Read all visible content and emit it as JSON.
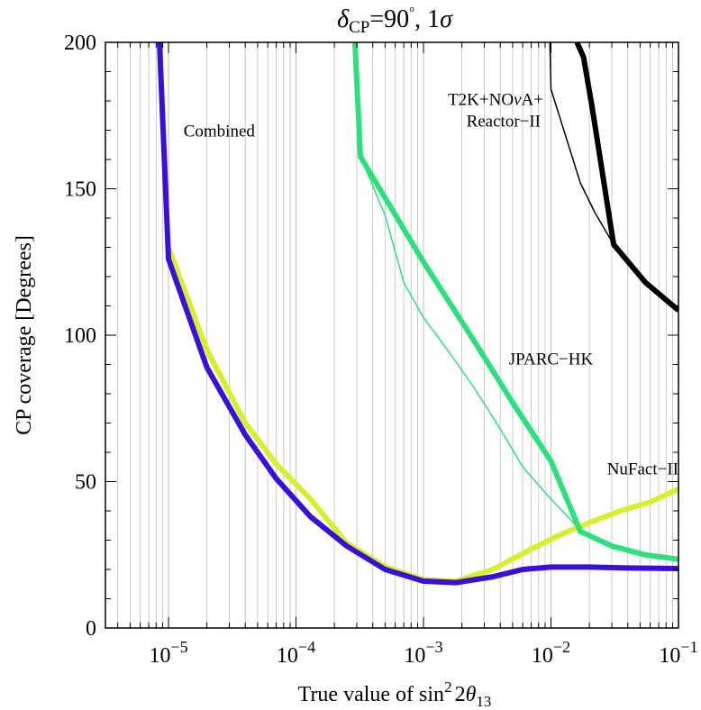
{
  "chart_data": {
    "type": "line",
    "title": {
      "delta_symbol": "δ",
      "delta_subscript": "CP",
      "equals_value": "=90",
      "degree_mark": "°",
      "sigma_prefix": ", 1",
      "sigma_symbol": "σ"
    },
    "xlabel": {
      "text": "True value of sin",
      "superscript": "2",
      "middle": "2",
      "theta_symbol": "θ",
      "theta_subscript": "13"
    },
    "ylabel": "CP coverage [Degrees]",
    "x_scale": "log",
    "xlim": [
      3.2e-06,
      0.1
    ],
    "ylim": [
      0,
      200
    ],
    "x_ticks": [
      {
        "value": 1e-05,
        "base": "10",
        "exp": "−5"
      },
      {
        "value": 0.0001,
        "base": "10",
        "exp": "−4"
      },
      {
        "value": 0.001,
        "base": "10",
        "exp": "−3"
      },
      {
        "value": 0.01,
        "base": "10",
        "exp": "−2"
      },
      {
        "value": 0.1,
        "base": "10",
        "exp": "−1"
      }
    ],
    "y_ticks": [
      0,
      50,
      100,
      150,
      200
    ],
    "grid": "vertical minor and major log grid",
    "colors": {
      "combined": "#3a0fd6",
      "nufact": "#d8ee2e",
      "jparc": "#2ce07c",
      "t2k": "#000000",
      "grid": "#c4c4c4"
    },
    "series": [
      {
        "id": "nufact",
        "style": "thick",
        "color_key": "nufact",
        "points": [
          [
            1e-05,
            130
          ],
          [
            2e-05,
            95
          ],
          [
            4e-05,
            70
          ],
          [
            7e-05,
            56
          ],
          [
            0.00013,
            44
          ],
          [
            0.00025,
            29
          ],
          [
            0.0005,
            21
          ],
          [
            0.001,
            16.5
          ],
          [
            0.0018,
            16
          ],
          [
            0.0035,
            20
          ],
          [
            0.007,
            27
          ],
          [
            0.012,
            32
          ],
          [
            0.02,
            36
          ],
          [
            0.035,
            40
          ],
          [
            0.06,
            43
          ],
          [
            0.1,
            47.5
          ]
        ]
      },
      {
        "id": "combined",
        "style": "thick",
        "color_key": "combined",
        "points": [
          [
            8.5e-06,
            200
          ],
          [
            1e-05,
            126
          ],
          [
            2e-05,
            89
          ],
          [
            4e-05,
            66
          ],
          [
            7e-05,
            51
          ],
          [
            0.00013,
            38
          ],
          [
            0.00025,
            28
          ],
          [
            0.0005,
            20
          ],
          [
            0.001,
            16
          ],
          [
            0.0018,
            15.5
          ],
          [
            0.0035,
            17.5
          ],
          [
            0.006,
            20
          ],
          [
            0.01,
            20.8
          ],
          [
            0.02,
            20.8
          ],
          [
            0.04,
            20.5
          ],
          [
            0.1,
            20.3
          ]
        ]
      },
      {
        "id": "jparc-thin",
        "style": "thin",
        "color_key": "jparc",
        "points": [
          [
            0.00032,
            161
          ],
          [
            0.0005,
            141
          ],
          [
            0.0007,
            118
          ],
          [
            0.001,
            106
          ],
          [
            0.0016,
            94
          ],
          [
            0.0025,
            82
          ],
          [
            0.004,
            68
          ],
          [
            0.006,
            55
          ],
          [
            0.01,
            44
          ],
          [
            0.015,
            36
          ],
          [
            0.017,
            33
          ]
        ]
      },
      {
        "id": "jparc",
        "style": "thick",
        "color_key": "jparc",
        "points": [
          [
            0.00029,
            200
          ],
          [
            0.00032,
            161
          ],
          [
            0.001,
            125
          ],
          [
            0.0025,
            98
          ],
          [
            0.005,
            77
          ],
          [
            0.01,
            57
          ],
          [
            0.017,
            33
          ],
          [
            0.03,
            28
          ],
          [
            0.055,
            25
          ],
          [
            0.1,
            23.5
          ]
        ]
      },
      {
        "id": "t2k-thin",
        "style": "thin",
        "color_key": "t2k",
        "points": [
          [
            0.0098,
            200
          ],
          [
            0.01,
            184
          ],
          [
            0.017,
            152
          ],
          [
            0.022,
            142
          ],
          [
            0.03,
            132
          ],
          [
            0.034,
            128
          ]
        ]
      },
      {
        "id": "t2k",
        "style": "thick",
        "color_key": "t2k",
        "points": [
          [
            0.016,
            200
          ],
          [
            0.018,
            195
          ],
          [
            0.021,
            178
          ],
          [
            0.031,
            131
          ],
          [
            0.055,
            118
          ],
          [
            0.1,
            108.5
          ]
        ]
      }
    ],
    "annotations": [
      {
        "id": "combined",
        "lines": [
          "Combined"
        ],
        "x": 2.5e-05,
        "y": 170,
        "anchor": "middle"
      },
      {
        "id": "t2k",
        "lines": [
          "T2K+NO",
          "Reactor−II"
        ],
        "nu_glyph": "ν",
        "suffix": "A+",
        "x": 0.009,
        "y": 170,
        "anchor": "end"
      },
      {
        "id": "jparc",
        "lines": [
          "JPARC−HK"
        ],
        "x": 0.01,
        "y": 90,
        "anchor": "middle"
      },
      {
        "id": "nufact",
        "lines": [
          "NuFact−II"
        ],
        "x": 0.1,
        "y": 50,
        "anchor": "end"
      }
    ]
  }
}
